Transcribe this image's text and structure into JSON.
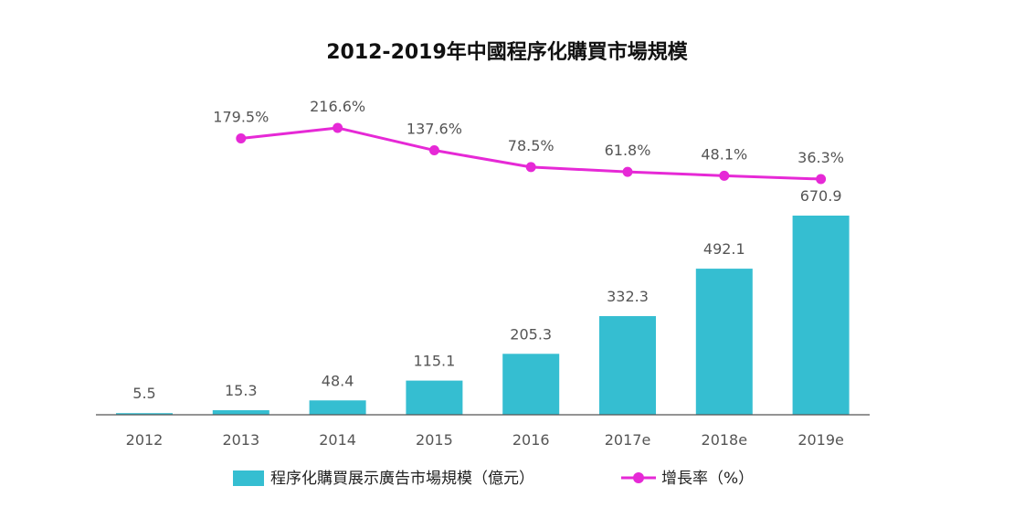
{
  "chart_data": {
    "type": "bar",
    "title": "2012-2019年中國程序化購買市場規模",
    "categories": [
      "2012",
      "2013",
      "2014",
      "2015",
      "2016",
      "2017e",
      "2018e",
      "2019e"
    ],
    "ylim": [
      0,
      750
    ],
    "grid": false,
    "legend_position": "bottom",
    "series": [
      {
        "name": "程序化購買展示廣告市場規模（億元）",
        "type": "bar",
        "color": "#35BED1",
        "values": [
          5.5,
          15.3,
          48.4,
          115.1,
          205.3,
          332.3,
          492.1,
          670.9
        ],
        "labels": [
          "5.5",
          "15.3",
          "48.4",
          "115.1",
          "205.3",
          "332.3",
          "492.1",
          "670.9"
        ]
      },
      {
        "name": "增長率（%）",
        "type": "line",
        "color": "#E629D6",
        "values": [
          null,
          179.5,
          216.6,
          137.6,
          78.5,
          61.8,
          48.1,
          36.3
        ],
        "labels": [
          "",
          "179.5%",
          "216.6%",
          "137.6%",
          "78.5%",
          "61.8%",
          "48.1%",
          "36.3%"
        ]
      }
    ]
  }
}
